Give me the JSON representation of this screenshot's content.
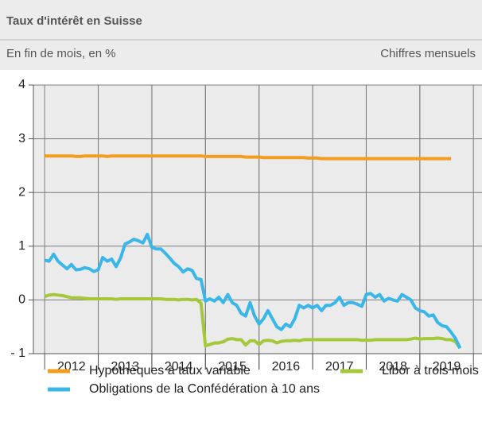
{
  "chart_data": {
    "type": "line",
    "title": "Taux d'intérêt en Suisse",
    "subtitle": "En fin de mois, en %",
    "note": "Chiffres mensuels",
    "x": [
      2012,
      2012.083,
      2012.167,
      2012.25,
      2012.333,
      2012.417,
      2012.5,
      2012.583,
      2012.667,
      2012.75,
      2012.833,
      2012.917,
      2013,
      2013.083,
      2013.167,
      2013.25,
      2013.333,
      2013.417,
      2013.5,
      2013.583,
      2013.667,
      2013.75,
      2013.833,
      2013.917,
      2014,
      2014.083,
      2014.167,
      2014.25,
      2014.333,
      2014.417,
      2014.5,
      2014.583,
      2014.667,
      2014.75,
      2014.833,
      2014.917,
      2015,
      2015.083,
      2015.167,
      2015.25,
      2015.333,
      2015.417,
      2015.5,
      2015.583,
      2015.667,
      2015.75,
      2015.833,
      2015.917,
      2016,
      2016.083,
      2016.167,
      2016.25,
      2016.333,
      2016.417,
      2016.5,
      2016.583,
      2016.667,
      2016.75,
      2016.833,
      2016.917,
      2017,
      2017.083,
      2017.167,
      2017.25,
      2017.333,
      2017.417,
      2017.5,
      2017.583,
      2017.667,
      2017.75,
      2017.833,
      2017.917,
      2018,
      2018.083,
      2018.167,
      2018.25,
      2018.333,
      2018.417,
      2018.5,
      2018.583,
      2018.667,
      2018.75,
      2018.833,
      2018.917,
      2019,
      2019.083,
      2019.167,
      2019.25,
      2019.333,
      2019.417,
      2019.5,
      2019.583,
      2019.667,
      2019.75
    ],
    "series": [
      {
        "name": "Hypothèques à taux variable",
        "color": "#f39c1f",
        "values": [
          2.68,
          2.68,
          2.68,
          2.68,
          2.68,
          2.68,
          2.68,
          2.67,
          2.67,
          2.68,
          2.68,
          2.68,
          2.68,
          2.68,
          2.67,
          2.68,
          2.68,
          2.68,
          2.68,
          2.68,
          2.68,
          2.68,
          2.68,
          2.68,
          2.68,
          2.68,
          2.68,
          2.68,
          2.68,
          2.68,
          2.68,
          2.68,
          2.68,
          2.68,
          2.68,
          2.68,
          2.67,
          2.67,
          2.67,
          2.67,
          2.67,
          2.67,
          2.67,
          2.67,
          2.67,
          2.66,
          2.66,
          2.66,
          2.66,
          2.65,
          2.65,
          2.65,
          2.65,
          2.65,
          2.65,
          2.65,
          2.65,
          2.65,
          2.65,
          2.64,
          2.64,
          2.64,
          2.63,
          2.63,
          2.63,
          2.63,
          2.63,
          2.63,
          2.63,
          2.63,
          2.63,
          2.63,
          2.63,
          2.63,
          2.63,
          2.63,
          2.63,
          2.63,
          2.63,
          2.63,
          2.63,
          2.63,
          2.63,
          2.63,
          2.63,
          2.63,
          2.63,
          2.63,
          2.63,
          2.63,
          2.63,
          2.63,
          null,
          null
        ]
      },
      {
        "name": "Libor à trois mois",
        "color": "#a3c93a",
        "values": [
          0.06,
          0.09,
          0.1,
          0.09,
          0.08,
          0.06,
          0.04,
          0.04,
          0.04,
          0.03,
          0.02,
          0.02,
          0.02,
          0.02,
          0.02,
          0.02,
          0.01,
          0.02,
          0.02,
          0.02,
          0.02,
          0.02,
          0.02,
          0.02,
          0.02,
          0.02,
          0.02,
          0.01,
          0.01,
          0.01,
          0.0,
          0.01,
          0.01,
          0.0,
          0.01,
          -0.06,
          -0.85,
          -0.83,
          -0.8,
          -0.8,
          -0.78,
          -0.73,
          -0.72,
          -0.74,
          -0.74,
          -0.84,
          -0.76,
          -0.76,
          -0.83,
          -0.76,
          -0.75,
          -0.76,
          -0.8,
          -0.77,
          -0.76,
          -0.76,
          -0.75,
          -0.76,
          -0.74,
          -0.74,
          -0.74,
          -0.74,
          -0.74,
          -0.74,
          -0.74,
          -0.74,
          -0.74,
          -0.74,
          -0.74,
          -0.74,
          -0.74,
          -0.75,
          -0.75,
          -0.75,
          -0.74,
          -0.74,
          -0.74,
          -0.74,
          -0.74,
          -0.74,
          -0.74,
          -0.74,
          -0.73,
          -0.71,
          -0.73,
          -0.72,
          -0.72,
          -0.72,
          -0.71,
          -0.72,
          -0.74,
          -0.74,
          -0.78,
          -0.9
        ]
      },
      {
        "name": "Obligations de la Confédération à 10 ans",
        "color": "#3ab7e8",
        "values": [
          0.74,
          0.72,
          0.85,
          0.72,
          0.65,
          0.58,
          0.66,
          0.56,
          0.57,
          0.6,
          0.58,
          0.53,
          0.56,
          0.79,
          0.72,
          0.76,
          0.62,
          0.78,
          1.04,
          1.08,
          1.13,
          1.1,
          1.06,
          1.22,
          0.98,
          0.95,
          0.95,
          0.87,
          0.78,
          0.68,
          0.62,
          0.52,
          0.58,
          0.55,
          0.4,
          0.38,
          -0.02,
          0.02,
          -0.02,
          0.05,
          -0.05,
          0.1,
          -0.05,
          -0.1,
          -0.25,
          -0.3,
          -0.05,
          -0.3,
          -0.45,
          -0.35,
          -0.2,
          -0.35,
          -0.5,
          -0.55,
          -0.45,
          -0.5,
          -0.35,
          -0.1,
          -0.15,
          -0.1,
          -0.15,
          -0.1,
          -0.2,
          -0.1,
          -0.1,
          -0.05,
          0.05,
          -0.1,
          -0.05,
          -0.05,
          -0.08,
          -0.12,
          0.1,
          0.12,
          0.05,
          0.1,
          -0.02,
          0.03,
          0.0,
          -0.02,
          0.1,
          0.05,
          0.0,
          -0.15,
          -0.2,
          -0.22,
          -0.3,
          -0.28,
          -0.42,
          -0.48,
          -0.5,
          -0.6,
          -0.72,
          -0.9
        ]
      }
    ],
    "xlim": [
      2011.79,
      2020.16
    ],
    "xticks": [
      {
        "value": 2012.5,
        "label": "2012"
      },
      {
        "value": 2013.5,
        "label": "2013"
      },
      {
        "value": 2014.5,
        "label": "2014"
      },
      {
        "value": 2015.5,
        "label": "2015"
      },
      {
        "value": 2016.5,
        "label": "2016"
      },
      {
        "value": 2017.5,
        "label": "2017"
      },
      {
        "value": 2018.5,
        "label": "2018"
      },
      {
        "value": 2019.5,
        "label": "2019"
      }
    ],
    "ylim": [
      -1,
      4
    ],
    "yticks": [
      {
        "value": -1,
        "label": "- 1"
      },
      0,
      1,
      2,
      3,
      4
    ],
    "grid": true
  }
}
